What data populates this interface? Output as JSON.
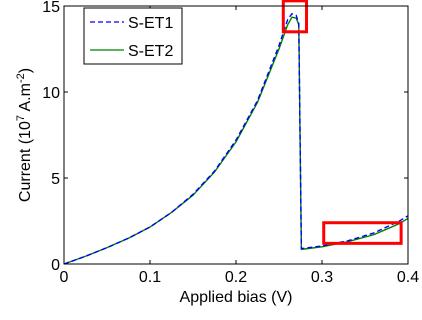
{
  "chart_data": {
    "type": "line",
    "title": "",
    "xlabel": "Applied bias (V)",
    "ylabel_prefix": "Current (10",
    "ylabel_exp1": "7",
    "ylabel_mid": " A.m",
    "ylabel_exp2": "-2",
    "ylabel_suffix": ")",
    "xlim": [
      0,
      0.4
    ],
    "ylim": [
      0,
      15
    ],
    "xticks": [
      0,
      0.1,
      0.2,
      0.3,
      0.4
    ],
    "xtick_labels": [
      "0",
      "0.1",
      "0.2",
      "0.3",
      "0.4"
    ],
    "yticks": [
      0,
      5,
      10,
      15
    ],
    "ytick_labels": [
      "0",
      "5",
      "10",
      "15"
    ],
    "grid": false,
    "legend_position": "top-left",
    "series": [
      {
        "name": "S-ET1",
        "color": "#0000ff",
        "style": "dashed",
        "x": [
          0,
          0.025,
          0.05,
          0.075,
          0.1,
          0.125,
          0.15,
          0.175,
          0.2,
          0.225,
          0.25,
          0.26,
          0.265,
          0.27,
          0.273,
          0.276,
          0.3,
          0.33,
          0.36,
          0.39,
          0.4
        ],
        "y": [
          0,
          0.45,
          0.95,
          1.5,
          2.15,
          3.0,
          4.05,
          5.4,
          7.2,
          9.5,
          12.7,
          14.2,
          14.55,
          14.45,
          14.0,
          0.9,
          1.05,
          1.35,
          1.8,
          2.5,
          2.8
        ]
      },
      {
        "name": "S-ET2",
        "color": "#008000",
        "style": "solid",
        "x": [
          0,
          0.025,
          0.05,
          0.075,
          0.1,
          0.125,
          0.15,
          0.175,
          0.2,
          0.225,
          0.25,
          0.26,
          0.265,
          0.27,
          0.273,
          0.276,
          0.3,
          0.33,
          0.36,
          0.39,
          0.4
        ],
        "y": [
          0,
          0.45,
          0.95,
          1.5,
          2.15,
          3.0,
          4.0,
          5.35,
          7.1,
          9.4,
          12.5,
          13.9,
          14.35,
          14.3,
          13.9,
          0.85,
          1.0,
          1.3,
          1.7,
          2.35,
          2.65
        ]
      }
    ],
    "annotations": [
      {
        "type": "rect",
        "color": "#ff0000",
        "x0": 0.255,
        "x1": 0.282,
        "y0": 13.5,
        "y1": 15.3
      },
      {
        "type": "rect",
        "color": "#ff0000",
        "x0": 0.302,
        "x1": 0.392,
        "y0": 1.2,
        "y1": 2.4
      }
    ]
  }
}
